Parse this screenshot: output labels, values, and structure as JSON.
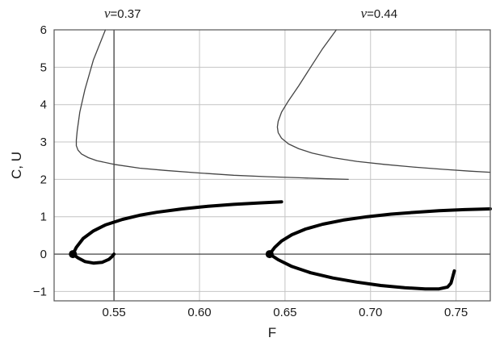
{
  "chart_data": {
    "type": "line",
    "title": "",
    "xlabel": "F",
    "ylabel": "C, U",
    "xlim": [
      0.515,
      0.77
    ],
    "ylim": [
      -1.25,
      6.0
    ],
    "grid": true,
    "x_ticks": [
      0.55,
      0.6,
      0.65,
      0.7,
      0.75
    ],
    "x_tick_labels": [
      "0.55",
      "0.60",
      "0.65",
      "0.70",
      "0.75"
    ],
    "y_ticks": [
      -1,
      0,
      1,
      2,
      3,
      4,
      5,
      6
    ],
    "y_tick_labels": [
      "−1",
      "0",
      "1",
      "2",
      "3",
      "4",
      "5",
      "6"
    ],
    "annotations": [
      {
        "symbol": "ν",
        "text": "=0.37",
        "x": 0.555
      },
      {
        "symbol": "ν",
        "text": "=0.44",
        "x": 0.705
      }
    ],
    "vlines": [
      {
        "x": 0.55,
        "color": "#333333"
      }
    ],
    "hlines": [
      {
        "y": 0,
        "color": "#333333"
      }
    ],
    "series": [
      {
        "style": "thin",
        "color": "#444444",
        "x": [
          0.545,
          0.538,
          0.533,
          0.53,
          0.5285,
          0.528,
          0.528,
          0.529,
          0.531,
          0.535,
          0.54,
          0.55,
          0.565,
          0.58,
          0.6,
          0.62,
          0.64,
          0.66,
          0.675,
          0.687
        ],
        "y": [
          6.0,
          5.2,
          4.4,
          3.8,
          3.3,
          3.05,
          2.9,
          2.78,
          2.68,
          2.58,
          2.5,
          2.4,
          2.3,
          2.24,
          2.17,
          2.11,
          2.07,
          2.04,
          2.015,
          2.0
        ]
      },
      {
        "style": "thick",
        "color": "#000000",
        "x": [
          0.526,
          0.528,
          0.532,
          0.538,
          0.545,
          0.555,
          0.565,
          0.575,
          0.59,
          0.605,
          0.62,
          0.635,
          0.648
        ],
        "y": [
          0.0,
          0.18,
          0.42,
          0.62,
          0.78,
          0.93,
          1.04,
          1.12,
          1.21,
          1.28,
          1.33,
          1.37,
          1.4
        ]
      },
      {
        "style": "thick",
        "color": "#000000",
        "x": [
          0.526,
          0.529,
          0.533,
          0.538,
          0.543,
          0.547,
          0.549,
          0.55
        ],
        "y": [
          0.0,
          -0.1,
          -0.2,
          -0.24,
          -0.22,
          -0.14,
          -0.06,
          0.0
        ]
      },
      {
        "style": "thin",
        "color": "#444444",
        "x": [
          0.68,
          0.672,
          0.665,
          0.658,
          0.652,
          0.648,
          0.646,
          0.6455,
          0.646,
          0.648,
          0.652,
          0.658,
          0.666,
          0.678,
          0.692,
          0.708,
          0.725,
          0.742,
          0.758,
          0.77
        ],
        "y": [
          6.0,
          5.5,
          5.0,
          4.5,
          4.1,
          3.8,
          3.55,
          3.4,
          3.25,
          3.1,
          2.95,
          2.82,
          2.7,
          2.58,
          2.48,
          2.4,
          2.33,
          2.27,
          2.22,
          2.19
        ]
      },
      {
        "style": "thick",
        "color": "#000000",
        "x": [
          0.641,
          0.644,
          0.648,
          0.654,
          0.662,
          0.672,
          0.684,
          0.698,
          0.712,
          0.726,
          0.74,
          0.755,
          0.77
        ],
        "y": [
          0.0,
          0.18,
          0.35,
          0.52,
          0.67,
          0.8,
          0.91,
          1.0,
          1.07,
          1.12,
          1.16,
          1.19,
          1.21
        ]
      },
      {
        "style": "thick",
        "color": "#000000",
        "x": [
          0.641,
          0.646,
          0.654,
          0.665,
          0.678,
          0.692,
          0.706,
          0.72,
          0.732,
          0.74,
          0.745,
          0.747,
          0.748,
          0.749
        ],
        "y": [
          0.0,
          -0.15,
          -0.33,
          -0.5,
          -0.64,
          -0.75,
          -0.84,
          -0.9,
          -0.93,
          -0.93,
          -0.88,
          -0.78,
          -0.62,
          -0.45
        ]
      }
    ],
    "markers": [
      {
        "x": 0.526,
        "y": 0.0
      },
      {
        "x": 0.641,
        "y": 0.0
      }
    ]
  }
}
